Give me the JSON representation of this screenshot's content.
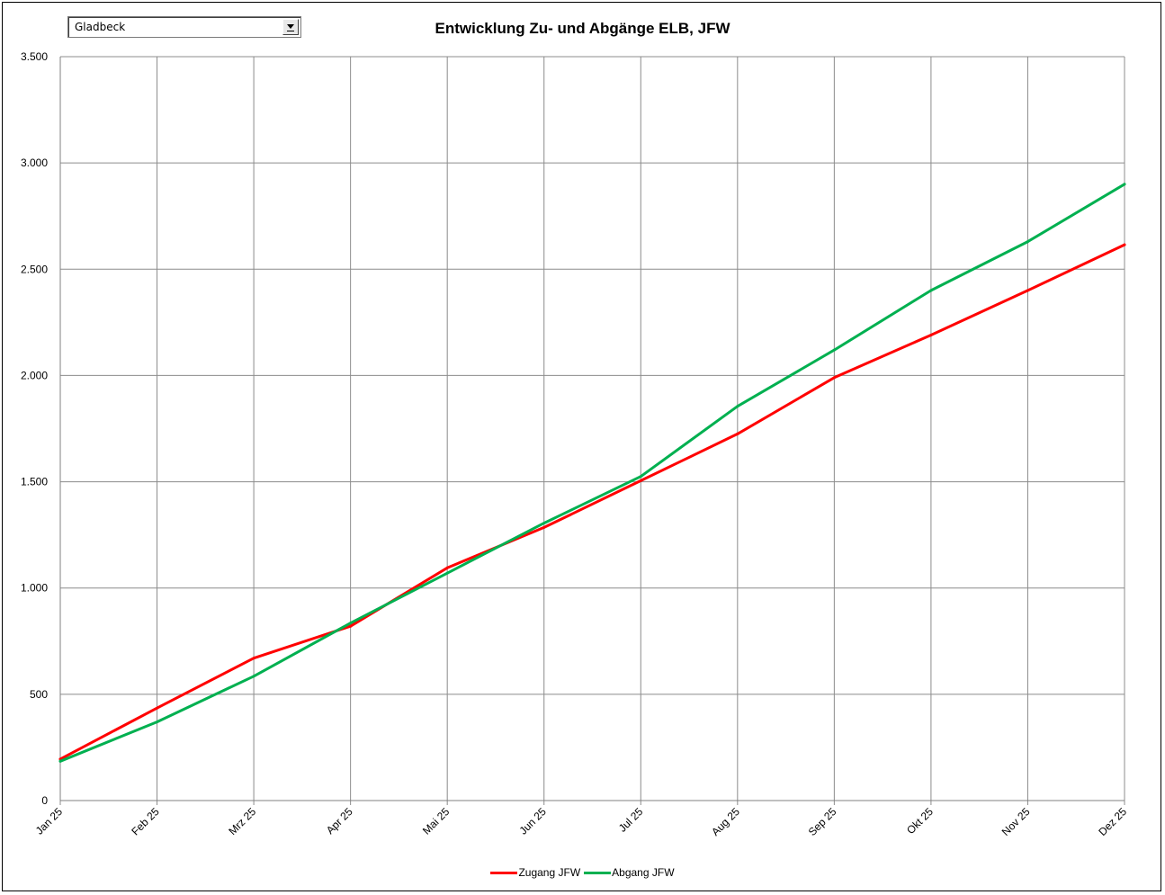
{
  "dropdown": {
    "selected": "Gladbeck"
  },
  "chart_data": {
    "type": "line",
    "title": "Entwicklung Zu- und Abgänge ELB, JFW",
    "categories": [
      "Jan 25",
      "Feb 25",
      "Mrz 25",
      "Apr 25",
      "Mai 25",
      "Jun 25",
      "Jul 25",
      "Aug 25",
      "Sep 25",
      "Okt 25",
      "Nov 25",
      "Dez 25"
    ],
    "ylim": [
      0,
      3500
    ],
    "yticks": [
      0,
      500,
      1000,
      1500,
      2000,
      2500,
      3000,
      3500
    ],
    "ytick_labels": [
      "0",
      "500",
      "1.000",
      "1.500",
      "2.000",
      "2.500",
      "3.000",
      "3.500"
    ],
    "grid": true,
    "legend_position": "bottom",
    "series": [
      {
        "name": "Zugang JFW",
        "color": "#ff0000",
        "values": [
          195,
          435,
          670,
          820,
          1095,
          1285,
          1505,
          1725,
          1990,
          2190,
          2400,
          2615
        ]
      },
      {
        "name": "Abgang JFW",
        "color": "#00b050",
        "values": [
          185,
          370,
          585,
          835,
          1070,
          1305,
          1525,
          1855,
          2120,
          2400,
          2630,
          2900
        ]
      }
    ]
  }
}
